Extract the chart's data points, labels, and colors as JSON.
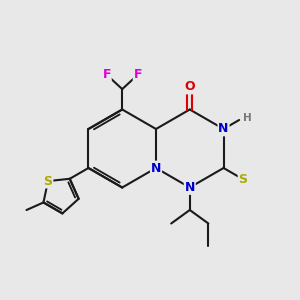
{
  "background_color": "#e8e8e8",
  "bond_color": "#1a1a1a",
  "atom_colors": {
    "N": "#0000cc",
    "O": "#dd0000",
    "S_thiol": "#aaaa00",
    "S_thio": "#aaaa00",
    "F": "#dd00dd",
    "H": "#777777"
  },
  "figsize": [
    3.0,
    3.0
  ],
  "dpi": 100,
  "lw": 1.5,
  "fs": 9.0
}
